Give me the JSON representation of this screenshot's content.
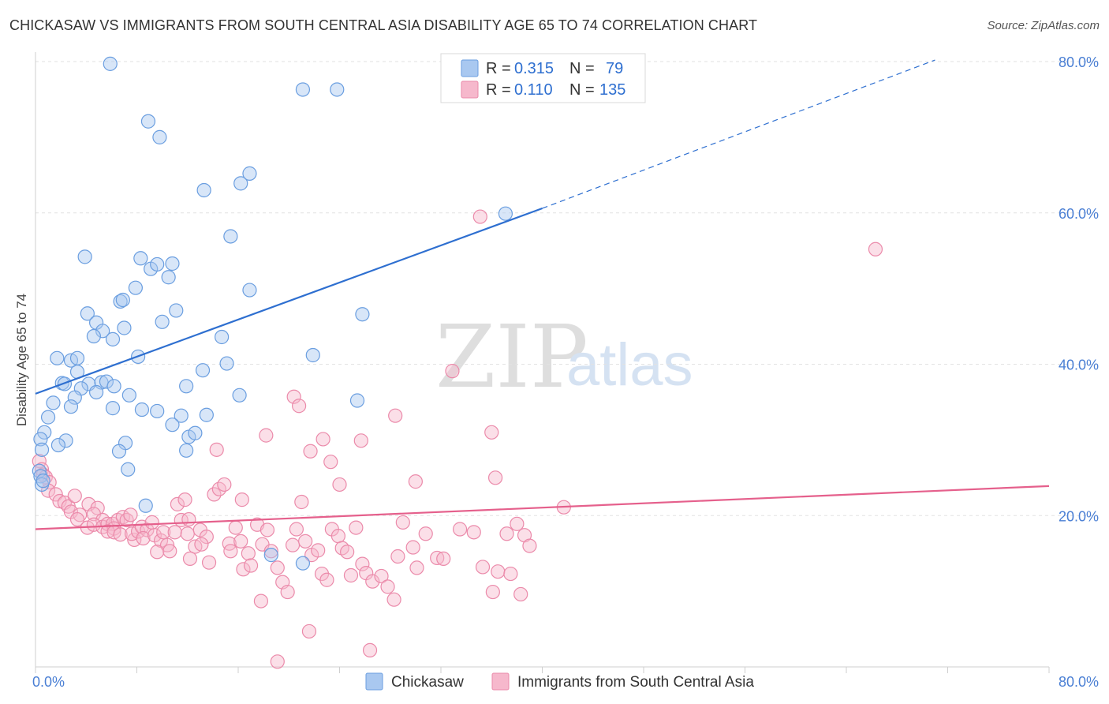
{
  "title": "CHICKASAW VS IMMIGRANTS FROM SOUTH CENTRAL ASIA DISABILITY AGE 65 TO 74 CORRELATION CHART",
  "source": "Source: ZipAtlas.com",
  "watermark": {
    "zip": "ZIP",
    "atlas": "atlas"
  },
  "legend": {
    "rows": [
      {
        "r_label": "R =",
        "r_value": "0.315",
        "n_label": "N =",
        "n_value": "79"
      },
      {
        "r_label": "R =",
        "r_value": "0.110",
        "n_label": "N =",
        "n_value": "135"
      }
    ]
  },
  "bottom_legend": [
    "Chickasaw",
    "Immigrants from South Central Asia"
  ],
  "colors": {
    "blue_fill": "#a9c8f0",
    "blue_stroke": "#6a9ee0",
    "blue_line": "#2e6fd0",
    "pink_fill": "#f6b8cc",
    "pink_stroke": "#eb8aaa",
    "pink_line": "#e5608c",
    "tick_text": "#4a7fd4",
    "grid": "#e2e2e2"
  },
  "chart_data": {
    "type": "scatter",
    "title": "CHICKASAW VS IMMIGRANTS FROM SOUTH CENTRAL ASIA DISABILITY AGE 65 TO 74 CORRELATION CHART",
    "xlabel": "",
    "ylabel": "Disability Age 65 to 74",
    "xlim": [
      0,
      80
    ],
    "ylim": [
      0,
      80
    ],
    "x_tick_labels": [
      "0.0%",
      "80.0%"
    ],
    "y_ticks": [
      20,
      40,
      60,
      80
    ],
    "y_tick_labels": [
      "20.0%",
      "40.0%",
      "60.0%",
      "80.0%"
    ],
    "grid": true,
    "legend_position": "top-center",
    "series": [
      {
        "name": "Chickasaw",
        "color": "#6a9ee0",
        "trend": {
          "x0": 0,
          "y0": 36.1,
          "x1": 40,
          "y1": 60.6,
          "dash_to_x": 71,
          "dash_to_y": 80.2
        },
        "points": [
          [
            5.9,
            79.7
          ],
          [
            21.1,
            76.3
          ],
          [
            23.8,
            76.3
          ],
          [
            8.9,
            72.1
          ],
          [
            9.8,
            70.0
          ],
          [
            13.3,
            63.0
          ],
          [
            16.2,
            63.9
          ],
          [
            16.9,
            65.2
          ],
          [
            15.4,
            56.9
          ],
          [
            3.9,
            54.2
          ],
          [
            8.3,
            54.0
          ],
          [
            9.1,
            52.6
          ],
          [
            9.6,
            53.2
          ],
          [
            10.8,
            53.3
          ],
          [
            10.5,
            51.5
          ],
          [
            16.9,
            49.8
          ],
          [
            7.9,
            50.1
          ],
          [
            6.7,
            48.3
          ],
          [
            6.9,
            48.5
          ],
          [
            11.1,
            47.1
          ],
          [
            4.1,
            46.7
          ],
          [
            10.0,
            45.6
          ],
          [
            4.8,
            45.5
          ],
          [
            5.3,
            44.4
          ],
          [
            7.0,
            44.8
          ],
          [
            4.6,
            43.7
          ],
          [
            6.1,
            43.3
          ],
          [
            14.7,
            43.6
          ],
          [
            25.8,
            46.6
          ],
          [
            1.7,
            40.8
          ],
          [
            2.8,
            40.5
          ],
          [
            3.3,
            40.8
          ],
          [
            8.1,
            41.0
          ],
          [
            21.9,
            41.2
          ],
          [
            15.1,
            40.1
          ],
          [
            3.3,
            39.0
          ],
          [
            13.2,
            39.2
          ],
          [
            2.1,
            37.5
          ],
          [
            2.3,
            37.4
          ],
          [
            4.2,
            37.4
          ],
          [
            5.2,
            37.6
          ],
          [
            5.6,
            37.7
          ],
          [
            6.2,
            37.1
          ],
          [
            3.6,
            36.8
          ],
          [
            4.8,
            36.3
          ],
          [
            11.9,
            37.1
          ],
          [
            7.4,
            35.9
          ],
          [
            3.1,
            35.6
          ],
          [
            1.4,
            34.9
          ],
          [
            2.8,
            34.4
          ],
          [
            6.1,
            34.2
          ],
          [
            8.4,
            34.0
          ],
          [
            9.6,
            33.8
          ],
          [
            16.1,
            35.9
          ],
          [
            25.4,
            35.2
          ],
          [
            1.0,
            33.0
          ],
          [
            11.5,
            33.2
          ],
          [
            13.5,
            33.3
          ],
          [
            10.8,
            32.0
          ],
          [
            0.7,
            31.0
          ],
          [
            12.1,
            30.4
          ],
          [
            12.6,
            30.9
          ],
          [
            0.4,
            30.1
          ],
          [
            2.4,
            29.9
          ],
          [
            1.8,
            29.3
          ],
          [
            7.1,
            29.6
          ],
          [
            11.9,
            28.6
          ],
          [
            6.6,
            28.5
          ],
          [
            0.5,
            28.7
          ],
          [
            7.3,
            26.1
          ],
          [
            0.3,
            25.9
          ],
          [
            0.4,
            25.2
          ],
          [
            0.5,
            24.1
          ],
          [
            0.6,
            24.6
          ],
          [
            8.7,
            21.3
          ],
          [
            18.6,
            14.8
          ],
          [
            21.1,
            13.7
          ],
          [
            37.1,
            59.9
          ]
        ]
      },
      {
        "name": "Immigrants from South Central Asia",
        "color": "#eb8aaa",
        "trend": {
          "x0": 0,
          "y0": 18.2,
          "x1": 80,
          "y1": 23.9
        },
        "points": [
          [
            0.3,
            27.2
          ],
          [
            0.5,
            26.1
          ],
          [
            0.6,
            25.4
          ],
          [
            0.8,
            25.1
          ],
          [
            1.1,
            24.4
          ],
          [
            1.0,
            23.3
          ],
          [
            1.6,
            22.8
          ],
          [
            1.9,
            21.9
          ],
          [
            2.3,
            21.7
          ],
          [
            2.6,
            21.2
          ],
          [
            3.1,
            22.6
          ],
          [
            2.8,
            20.5
          ],
          [
            3.5,
            20.1
          ],
          [
            3.3,
            19.5
          ],
          [
            4.2,
            21.5
          ],
          [
            4.9,
            21.0
          ],
          [
            4.6,
            20.2
          ],
          [
            5.3,
            19.4
          ],
          [
            4.1,
            18.4
          ],
          [
            4.6,
            18.8
          ],
          [
            5.3,
            18.5
          ],
          [
            5.7,
            18.9
          ],
          [
            6.1,
            18.9
          ],
          [
            6.5,
            19.4
          ],
          [
            6.2,
            18.3
          ],
          [
            5.7,
            17.9
          ],
          [
            6.9,
            19.8
          ],
          [
            7.2,
            19.4
          ],
          [
            7.5,
            20.1
          ],
          [
            6.2,
            17.8
          ],
          [
            6.7,
            17.5
          ],
          [
            7.8,
            16.8
          ],
          [
            7.6,
            17.6
          ],
          [
            8.1,
            17.9
          ],
          [
            8.4,
            18.5
          ],
          [
            8.8,
            18.1
          ],
          [
            9.2,
            19.1
          ],
          [
            8.5,
            17.0
          ],
          [
            9.4,
            17.4
          ],
          [
            9.9,
            16.7
          ],
          [
            10.1,
            17.8
          ],
          [
            10.4,
            16.1
          ],
          [
            11.0,
            17.8
          ],
          [
            9.6,
            15.2
          ],
          [
            10.6,
            15.3
          ],
          [
            11.2,
            21.5
          ],
          [
            11.5,
            19.4
          ],
          [
            11.8,
            22.1
          ],
          [
            12.1,
            19.5
          ],
          [
            12.0,
            17.6
          ],
          [
            12.6,
            15.9
          ],
          [
            13.0,
            18.1
          ],
          [
            13.5,
            17.2
          ],
          [
            13.1,
            16.2
          ],
          [
            12.2,
            14.3
          ],
          [
            13.7,
            13.8
          ],
          [
            14.1,
            22.8
          ],
          [
            14.5,
            23.5
          ],
          [
            14.9,
            24.1
          ],
          [
            15.3,
            16.3
          ],
          [
            15.8,
            18.4
          ],
          [
            16.2,
            16.6
          ],
          [
            15.4,
            15.3
          ],
          [
            16.8,
            15.0
          ],
          [
            16.4,
            12.9
          ],
          [
            17.0,
            13.4
          ],
          [
            17.5,
            18.8
          ],
          [
            17.9,
            16.2
          ],
          [
            18.3,
            18.1
          ],
          [
            18.6,
            15.3
          ],
          [
            19.1,
            13.1
          ],
          [
            19.5,
            11.2
          ],
          [
            19.9,
            9.9
          ],
          [
            20.3,
            16.1
          ],
          [
            20.6,
            18.2
          ],
          [
            21.0,
            21.8
          ],
          [
            21.3,
            16.6
          ],
          [
            21.8,
            14.8
          ],
          [
            22.3,
            15.4
          ],
          [
            22.6,
            12.3
          ],
          [
            23.0,
            11.5
          ],
          [
            23.4,
            18.2
          ],
          [
            23.9,
            17.3
          ],
          [
            24.2,
            15.7
          ],
          [
            24.6,
            15.2
          ],
          [
            24.9,
            12.1
          ],
          [
            25.3,
            18.4
          ],
          [
            25.8,
            13.6
          ],
          [
            26.1,
            12.4
          ],
          [
            26.6,
            11.3
          ],
          [
            27.3,
            12.0
          ],
          [
            27.8,
            10.6
          ],
          [
            28.3,
            8.9
          ],
          [
            28.6,
            14.6
          ],
          [
            29.0,
            19.1
          ],
          [
            29.8,
            15.8
          ],
          [
            30.1,
            13.1
          ],
          [
            30.8,
            17.6
          ],
          [
            31.7,
            14.4
          ],
          [
            32.2,
            14.3
          ],
          [
            33.5,
            18.2
          ],
          [
            34.6,
            17.8
          ],
          [
            35.3,
            13.2
          ],
          [
            36.1,
            9.9
          ],
          [
            36.5,
            12.6
          ],
          [
            37.2,
            17.6
          ],
          [
            37.5,
            12.3
          ],
          [
            38.3,
            9.6
          ],
          [
            38.6,
            17.4
          ],
          [
            39.0,
            16.0
          ],
          [
            16.3,
            22.1
          ],
          [
            18.2,
            30.6
          ],
          [
            14.3,
            28.7
          ],
          [
            20.4,
            35.7
          ],
          [
            20.8,
            34.5
          ],
          [
            21.7,
            28.5
          ],
          [
            22.7,
            30.1
          ],
          [
            23.3,
            27.1
          ],
          [
            24.0,
            24.1
          ],
          [
            25.7,
            29.9
          ],
          [
            28.4,
            33.2
          ],
          [
            30.0,
            24.5
          ],
          [
            32.9,
            39.1
          ],
          [
            36.0,
            31.0
          ],
          [
            36.3,
            25.0
          ],
          [
            35.1,
            59.5
          ],
          [
            66.3,
            55.2
          ],
          [
            41.7,
            21.1
          ],
          [
            17.8,
            8.7
          ],
          [
            21.6,
            4.7
          ],
          [
            26.4,
            2.2
          ],
          [
            19.1,
            0.7
          ],
          [
            38.0,
            18.9
          ]
        ]
      }
    ]
  }
}
